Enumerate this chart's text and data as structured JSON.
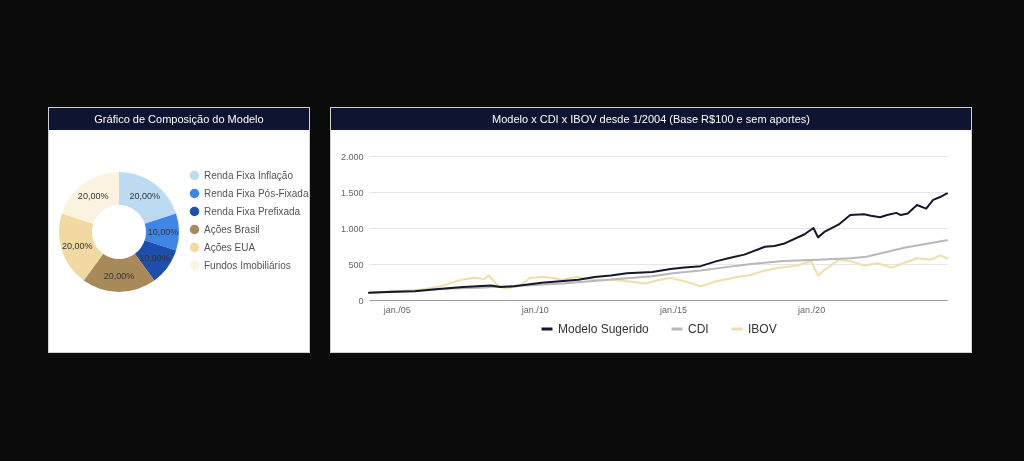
{
  "chart_data": [
    {
      "type": "donut",
      "title": "Gráfico de Composição do Modelo",
      "categories": [
        "Renda Fixa Inflação",
        "Renda Fixa Pós-Fixada",
        "Renda Fixa Prefixada",
        "Ações Brasil",
        "Ações EUA",
        "Fundos Imobiliários"
      ],
      "values": [
        20,
        10,
        10,
        20,
        20,
        20
      ],
      "colors": [
        "#bcdaf2",
        "#3f86e6",
        "#1e4fae",
        "#a8895a",
        "#f1d9a2",
        "#fbf2df"
      ],
      "value_labels": [
        "20,00%",
        "10,00%",
        "10,00%",
        "20,00%",
        "20,00%",
        "20,00%"
      ],
      "legend": "right"
    },
    {
      "type": "line",
      "title": "Modelo x CDI x IBOV desde 1/2004 (Base R$100 e sem aportes)",
      "xlim": [
        "2004-01",
        "2024-12"
      ],
      "xticks": [
        {
          "value": "2005-01",
          "label": "jan./05"
        },
        {
          "value": "2010-01",
          "label": "jan./10"
        },
        {
          "value": "2015-01",
          "label": "jan./15"
        },
        {
          "value": "2020-01",
          "label": "jan./20"
        }
      ],
      "ylim": [
        0,
        2000
      ],
      "yticks": [
        0,
        500,
        {
          "value": 1000,
          "label": "1.000"
        },
        {
          "value": 1500,
          "label": "1.500"
        },
        {
          "value": 2000,
          "label": "2.000"
        }
      ],
      "grid": "y",
      "legend": "bottom",
      "series": [
        {
          "name": "Modelo Sugerido",
          "color": "#17172b",
          "x": [
            "2004-01",
            "2004-09",
            "2005-09",
            "2006-06",
            "2007-06",
            "2008-06",
            "2008-10",
            "2009-04",
            "2010-04",
            "2011-08",
            "2012-03",
            "2012-10",
            "2013-05",
            "2014-04",
            "2014-12",
            "2015-06",
            "2016-01",
            "2016-08",
            "2017-01",
            "2017-08",
            "2018-05",
            "2018-09",
            "2019-01",
            "2019-10",
            "2020-02",
            "2020-04",
            "2020-07",
            "2021-01",
            "2021-06",
            "2021-12",
            "2022-03",
            "2022-07",
            "2022-10",
            "2023-02",
            "2023-04",
            "2023-07",
            "2023-11",
            "2024-03",
            "2024-06",
            "2024-09",
            "2024-12"
          ],
          "values": [
            100,
            110,
            120,
            150,
            180,
            200,
            180,
            190,
            240,
            280,
            320,
            340,
            370,
            390,
            430,
            450,
            470,
            540,
            580,
            630,
            740,
            750,
            780,
            910,
            1000,
            870,
            950,
            1050,
            1180,
            1190,
            1170,
            1150,
            1180,
            1210,
            1180,
            1200,
            1320,
            1270,
            1390,
            1430,
            1480
          ]
        },
        {
          "name": "CDI",
          "color": "#b8b8b8",
          "x": [
            "2004-01",
            "2005-01",
            "2006-01",
            "2007-01",
            "2008-01",
            "2009-01",
            "2010-01",
            "2011-01",
            "2012-01",
            "2013-01",
            "2014-04",
            "2015-01",
            "2016-01",
            "2017-01",
            "2017-11",
            "2019-01",
            "2020-04",
            "2021-06",
            "2022-01",
            "2022-06",
            "2023-06",
            "2024-12"
          ],
          "values": [
            100,
            120,
            140,
            160,
            170,
            190,
            210,
            230,
            260,
            290,
            330,
            370,
            410,
            460,
            500,
            540,
            560,
            580,
            600,
            640,
            730,
            830
          ]
        },
        {
          "name": "IBOV",
          "color": "#eedfa8",
          "x": [
            "2004-01",
            "2005-09",
            "2006-08",
            "2007-05",
            "2007-11",
            "2008-03",
            "2008-05",
            "2008-09",
            "2008-12",
            "2009-06",
            "2009-11",
            "2010-06",
            "2011-01",
            "2011-07",
            "2012-03",
            "2012-11",
            "2013-05",
            "2014-01",
            "2014-06",
            "2014-12",
            "2015-06",
            "2016-01",
            "2016-08",
            "2017-05",
            "2017-11",
            "2018-05",
            "2018-10",
            "2019-07",
            "2020-01",
            "2020-04",
            "2020-07",
            "2021-01",
            "2021-06",
            "2021-12",
            "2022-06",
            "2022-12",
            "2023-05",
            "2023-11",
            "2024-05",
            "2024-09",
            "2024-12"
          ],
          "values": [
            100,
            130,
            190,
            280,
            310,
            290,
            340,
            200,
            160,
            190,
            310,
            320,
            280,
            320,
            280,
            280,
            260,
            230,
            270,
            310,
            260,
            190,
            260,
            320,
            350,
            410,
            440,
            480,
            540,
            340,
            420,
            560,
            540,
            480,
            510,
            450,
            510,
            580,
            560,
            620,
            580
          ]
        }
      ]
    }
  ]
}
